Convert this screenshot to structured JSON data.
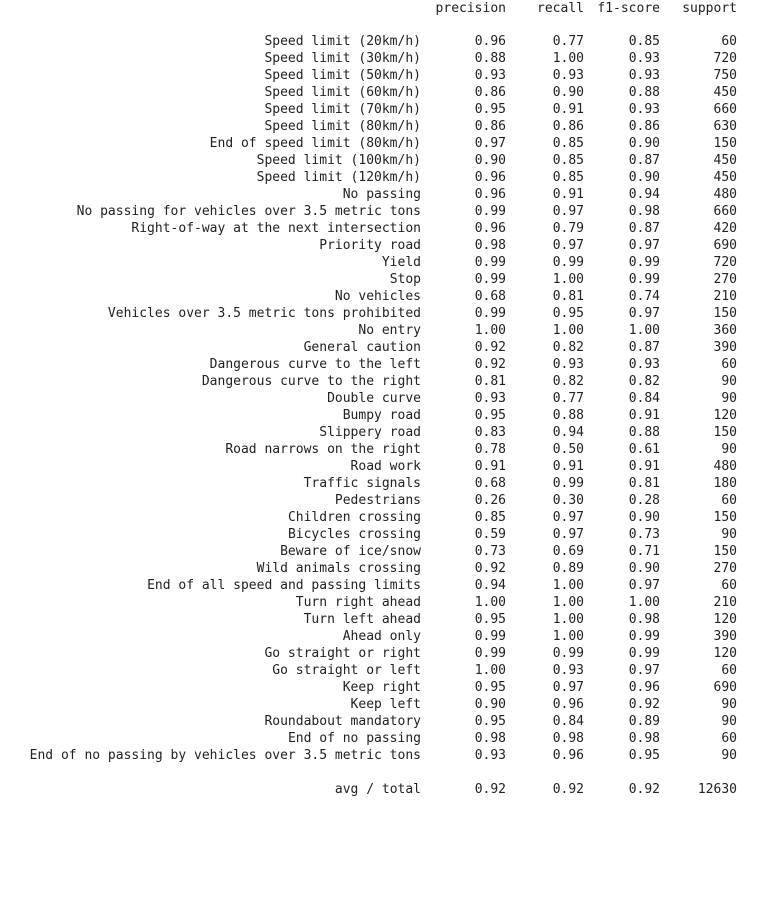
{
  "header": {
    "precision": "precision",
    "recall": "recall",
    "f1": "f1-score",
    "support": "support"
  },
  "rows": [
    {
      "label": "Speed limit (20km/h)",
      "precision": "0.96",
      "recall": "0.77",
      "f1": "0.85",
      "support": "60"
    },
    {
      "label": "Speed limit (30km/h)",
      "precision": "0.88",
      "recall": "1.00",
      "f1": "0.93",
      "support": "720"
    },
    {
      "label": "Speed limit (50km/h)",
      "precision": "0.93",
      "recall": "0.93",
      "f1": "0.93",
      "support": "750"
    },
    {
      "label": "Speed limit (60km/h)",
      "precision": "0.86",
      "recall": "0.90",
      "f1": "0.88",
      "support": "450"
    },
    {
      "label": "Speed limit (70km/h)",
      "precision": "0.95",
      "recall": "0.91",
      "f1": "0.93",
      "support": "660"
    },
    {
      "label": "Speed limit (80km/h)",
      "precision": "0.86",
      "recall": "0.86",
      "f1": "0.86",
      "support": "630"
    },
    {
      "label": "End of speed limit (80km/h)",
      "precision": "0.97",
      "recall": "0.85",
      "f1": "0.90",
      "support": "150"
    },
    {
      "label": "Speed limit (100km/h)",
      "precision": "0.90",
      "recall": "0.85",
      "f1": "0.87",
      "support": "450"
    },
    {
      "label": "Speed limit (120km/h)",
      "precision": "0.96",
      "recall": "0.85",
      "f1": "0.90",
      "support": "450"
    },
    {
      "label": "No passing",
      "precision": "0.96",
      "recall": "0.91",
      "f1": "0.94",
      "support": "480"
    },
    {
      "label": "No passing for vehicles over 3.5 metric tons",
      "precision": "0.99",
      "recall": "0.97",
      "f1": "0.98",
      "support": "660"
    },
    {
      "label": "Right-of-way at the next intersection",
      "precision": "0.96",
      "recall": "0.79",
      "f1": "0.87",
      "support": "420"
    },
    {
      "label": "Priority road",
      "precision": "0.98",
      "recall": "0.97",
      "f1": "0.97",
      "support": "690"
    },
    {
      "label": "Yield",
      "precision": "0.99",
      "recall": "0.99",
      "f1": "0.99",
      "support": "720"
    },
    {
      "label": "Stop",
      "precision": "0.99",
      "recall": "1.00",
      "f1": "0.99",
      "support": "270"
    },
    {
      "label": "No vehicles",
      "precision": "0.68",
      "recall": "0.81",
      "f1": "0.74",
      "support": "210"
    },
    {
      "label": "Vehicles over 3.5 metric tons prohibited",
      "precision": "0.99",
      "recall": "0.95",
      "f1": "0.97",
      "support": "150"
    },
    {
      "label": "No entry",
      "precision": "1.00",
      "recall": "1.00",
      "f1": "1.00",
      "support": "360"
    },
    {
      "label": "General caution",
      "precision": "0.92",
      "recall": "0.82",
      "f1": "0.87",
      "support": "390"
    },
    {
      "label": "Dangerous curve to the left",
      "precision": "0.92",
      "recall": "0.93",
      "f1": "0.93",
      "support": "60"
    },
    {
      "label": "Dangerous curve to the right",
      "precision": "0.81",
      "recall": "0.82",
      "f1": "0.82",
      "support": "90"
    },
    {
      "label": "Double curve",
      "precision": "0.93",
      "recall": "0.77",
      "f1": "0.84",
      "support": "90"
    },
    {
      "label": "Bumpy road",
      "precision": "0.95",
      "recall": "0.88",
      "f1": "0.91",
      "support": "120"
    },
    {
      "label": "Slippery road",
      "precision": "0.83",
      "recall": "0.94",
      "f1": "0.88",
      "support": "150"
    },
    {
      "label": "Road narrows on the right",
      "precision": "0.78",
      "recall": "0.50",
      "f1": "0.61",
      "support": "90"
    },
    {
      "label": "Road work",
      "precision": "0.91",
      "recall": "0.91",
      "f1": "0.91",
      "support": "480"
    },
    {
      "label": "Traffic signals",
      "precision": "0.68",
      "recall": "0.99",
      "f1": "0.81",
      "support": "180"
    },
    {
      "label": "Pedestrians",
      "precision": "0.26",
      "recall": "0.30",
      "f1": "0.28",
      "support": "60"
    },
    {
      "label": "Children crossing",
      "precision": "0.85",
      "recall": "0.97",
      "f1": "0.90",
      "support": "150"
    },
    {
      "label": "Bicycles crossing",
      "precision": "0.59",
      "recall": "0.97",
      "f1": "0.73",
      "support": "90"
    },
    {
      "label": "Beware of ice/snow",
      "precision": "0.73",
      "recall": "0.69",
      "f1": "0.71",
      "support": "150"
    },
    {
      "label": "Wild animals crossing",
      "precision": "0.92",
      "recall": "0.89",
      "f1": "0.90",
      "support": "270"
    },
    {
      "label": "End of all speed and passing limits",
      "precision": "0.94",
      "recall": "1.00",
      "f1": "0.97",
      "support": "60"
    },
    {
      "label": "Turn right ahead",
      "precision": "1.00",
      "recall": "1.00",
      "f1": "1.00",
      "support": "210"
    },
    {
      "label": "Turn left ahead",
      "precision": "0.95",
      "recall": "1.00",
      "f1": "0.98",
      "support": "120"
    },
    {
      "label": "Ahead only",
      "precision": "0.99",
      "recall": "1.00",
      "f1": "0.99",
      "support": "390"
    },
    {
      "label": "Go straight or right",
      "precision": "0.99",
      "recall": "0.99",
      "f1": "0.99",
      "support": "120"
    },
    {
      "label": "Go straight or left",
      "precision": "1.00",
      "recall": "0.93",
      "f1": "0.97",
      "support": "60"
    },
    {
      "label": "Keep right",
      "precision": "0.95",
      "recall": "0.97",
      "f1": "0.96",
      "support": "690"
    },
    {
      "label": "Keep left",
      "precision": "0.90",
      "recall": "0.96",
      "f1": "0.92",
      "support": "90"
    },
    {
      "label": "Roundabout mandatory",
      "precision": "0.95",
      "recall": "0.84",
      "f1": "0.89",
      "support": "90"
    },
    {
      "label": "End of no passing",
      "precision": "0.98",
      "recall": "0.98",
      "f1": "0.98",
      "support": "60"
    },
    {
      "label": "End of no passing by vehicles over 3.5 metric tons",
      "precision": "0.93",
      "recall": "0.96",
      "f1": "0.95",
      "support": "90"
    }
  ],
  "total": {
    "label": "avg / total",
    "precision": "0.92",
    "recall": "0.92",
    "f1": "0.92",
    "support": "12630"
  }
}
